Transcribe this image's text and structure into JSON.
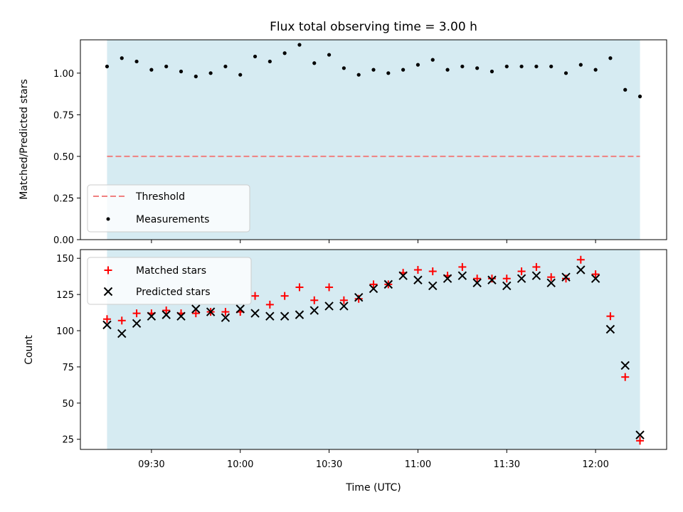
{
  "chart_data": [
    {
      "type": "scatter",
      "title": "Flux total observing time = 3.00 h",
      "xlabel": "",
      "ylabel": "Matched/Predicted stars",
      "ylim": [
        0.0,
        1.2
      ],
      "yticks": [
        "0.00",
        "0.25",
        "0.50",
        "0.75",
        "1.00"
      ],
      "grid": false,
      "shaded_region": {
        "start": "09:15",
        "end": "12:15",
        "color": "#add8e6"
      },
      "legend": {
        "placement": "lower-left"
      },
      "series": [
        {
          "name": "Threshold",
          "kind": "dashed-line",
          "color": "#f08080",
          "value": 0.5
        },
        {
          "name": "Measurements",
          "kind": "dot",
          "color": "#000000",
          "x": [
            "09:15",
            "09:20",
            "09:25",
            "09:30",
            "09:35",
            "09:40",
            "09:45",
            "09:50",
            "09:55",
            "10:00",
            "10:05",
            "10:10",
            "10:15",
            "10:20",
            "10:25",
            "10:30",
            "10:35",
            "10:40",
            "10:45",
            "10:50",
            "10:55",
            "11:00",
            "11:05",
            "11:10",
            "11:15",
            "11:20",
            "11:25",
            "11:30",
            "11:35",
            "11:40",
            "11:45",
            "11:50",
            "11:55",
            "12:00",
            "12:05",
            "12:10",
            "12:15"
          ],
          "values": [
            1.04,
            1.09,
            1.07,
            1.02,
            1.04,
            1.01,
            0.98,
            1.0,
            1.04,
            0.99,
            1.1,
            1.07,
            1.12,
            1.17,
            1.06,
            1.11,
            1.03,
            0.99,
            1.02,
            1.0,
            1.02,
            1.05,
            1.08,
            1.02,
            1.04,
            1.03,
            1.01,
            1.04,
            1.04,
            1.04,
            1.04,
            1.0,
            1.05,
            1.02,
            1.09,
            0.9,
            0.86
          ]
        }
      ]
    },
    {
      "type": "scatter",
      "title": "",
      "xlabel": "Time (UTC)",
      "ylabel": "Count",
      "ylim": [
        18,
        156
      ],
      "yticks": [
        "25",
        "50",
        "75",
        "100",
        "125",
        "150"
      ],
      "xticks": [
        "09:30",
        "10:00",
        "10:30",
        "11:00",
        "11:30",
        "12:00"
      ],
      "grid": false,
      "shaded_region": {
        "start": "09:15",
        "end": "12:15",
        "color": "#add8e6"
      },
      "legend": {
        "placement": "upper-left"
      },
      "series": [
        {
          "name": "Matched stars",
          "kind": "plus",
          "color": "#ff0000",
          "x": [
            "09:15",
            "09:20",
            "09:25",
            "09:30",
            "09:35",
            "09:40",
            "09:45",
            "09:50",
            "09:55",
            "10:00",
            "10:05",
            "10:10",
            "10:15",
            "10:20",
            "10:25",
            "10:30",
            "10:35",
            "10:40",
            "10:45",
            "10:50",
            "10:55",
            "11:00",
            "11:05",
            "11:10",
            "11:15",
            "11:20",
            "11:25",
            "11:30",
            "11:35",
            "11:40",
            "11:45",
            "11:50",
            "11:55",
            "12:00",
            "12:05",
            "12:10",
            "12:15"
          ],
          "values": [
            108,
            107,
            112,
            112,
            114,
            112,
            112,
            113,
            113,
            113,
            124,
            118,
            124,
            130,
            121,
            130,
            121,
            122,
            132,
            132,
            140,
            142,
            141,
            138,
            144,
            136,
            136,
            136,
            141,
            144,
            137,
            136,
            149,
            139,
            110,
            68,
            24
          ]
        },
        {
          "name": "Predicted stars",
          "kind": "x",
          "color": "#000000",
          "x": [
            "09:15",
            "09:20",
            "09:25",
            "09:30",
            "09:35",
            "09:40",
            "09:45",
            "09:50",
            "09:55",
            "10:00",
            "10:05",
            "10:10",
            "10:15",
            "10:20",
            "10:25",
            "10:30",
            "10:35",
            "10:40",
            "10:45",
            "10:50",
            "10:55",
            "11:00",
            "11:05",
            "11:10",
            "11:15",
            "11:20",
            "11:25",
            "11:30",
            "11:35",
            "11:40",
            "11:45",
            "11:50",
            "11:55",
            "12:00",
            "12:05",
            "12:10",
            "12:15"
          ],
          "values": [
            104,
            98,
            105,
            110,
            111,
            110,
            115,
            113,
            109,
            115,
            112,
            110,
            110,
            111,
            114,
            117,
            117,
            123,
            129,
            132,
            138,
            135,
            131,
            136,
            138,
            133,
            135,
            131,
            136,
            138,
            133,
            137,
            142,
            136,
            101,
            76,
            28
          ]
        }
      ]
    }
  ]
}
